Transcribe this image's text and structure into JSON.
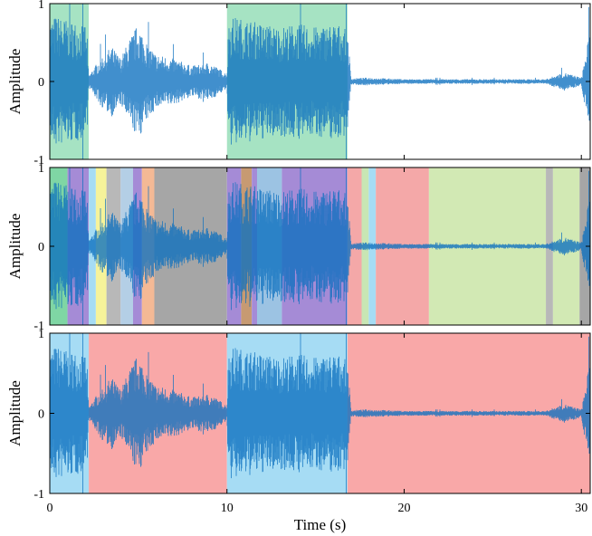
{
  "chart_data": [
    {
      "type": "area",
      "panel": "top",
      "ylabel": "Amplitude",
      "xlim": [
        0,
        30.5
      ],
      "ylim": [
        -1,
        1
      ],
      "yticks": [
        1,
        0,
        -1
      ],
      "segments": [
        {
          "start": 0.0,
          "end": 2.2,
          "color": "#a6e3c3"
        },
        {
          "start": 10.0,
          "end": 16.8,
          "color": "#a6e3c3"
        }
      ],
      "waveform_envelope": {
        "time": [
          0,
          0.3,
          1.0,
          2.0,
          2.2,
          3.0,
          3.5,
          4.0,
          4.5,
          5.0,
          5.5,
          6.0,
          7.0,
          8.0,
          9.0,
          10.0,
          10.1,
          11.0,
          12.0,
          13.0,
          14.0,
          15.0,
          16.0,
          16.8,
          17.0,
          18.0,
          20.0,
          22.0,
          24.0,
          26.0,
          28.0,
          29.0,
          30.0,
          30.5
        ],
        "amplitude": [
          0.8,
          0.85,
          0.8,
          0.75,
          0.08,
          0.35,
          0.45,
          0.3,
          0.55,
          0.75,
          0.5,
          0.35,
          0.3,
          0.2,
          0.25,
          0.1,
          0.85,
          0.8,
          0.75,
          0.7,
          0.75,
          0.7,
          0.75,
          0.7,
          0.04,
          0.05,
          0.03,
          0.03,
          0.03,
          0.03,
          0.03,
          0.12,
          0.05,
          0.7
        ]
      }
    },
    {
      "type": "area",
      "panel": "middle",
      "ylabel": "Amplitude",
      "xlim": [
        0,
        30.5
      ],
      "ylim": [
        -1,
        1
      ],
      "yticks": [
        1,
        0,
        -1
      ],
      "segments": [
        {
          "start": 0.0,
          "end": 1.0,
          "color": "#7fd6a4"
        },
        {
          "start": 1.0,
          "end": 2.2,
          "color": "#a58bd6"
        },
        {
          "start": 2.2,
          "end": 2.6,
          "color": "#a6dcf4"
        },
        {
          "start": 2.6,
          "end": 3.2,
          "color": "#f6f39a"
        },
        {
          "start": 3.2,
          "end": 4.0,
          "color": "#b8b8b8"
        },
        {
          "start": 4.0,
          "end": 4.7,
          "color": "#b4cfe6"
        },
        {
          "start": 4.7,
          "end": 5.2,
          "color": "#a58bd6"
        },
        {
          "start": 5.2,
          "end": 5.9,
          "color": "#f4b995"
        },
        {
          "start": 5.9,
          "end": 10.0,
          "color": "#a6a6a6"
        },
        {
          "start": 10.0,
          "end": 10.8,
          "color": "#a58bd6"
        },
        {
          "start": 10.8,
          "end": 11.4,
          "color": "#c79a72"
        },
        {
          "start": 11.4,
          "end": 11.7,
          "color": "#a58bd6"
        },
        {
          "start": 11.7,
          "end": 13.1,
          "color": "#9cc3e3"
        },
        {
          "start": 13.1,
          "end": 16.8,
          "color": "#a58bd6"
        },
        {
          "start": 16.8,
          "end": 17.6,
          "color": "#f4a8a8"
        },
        {
          "start": 17.6,
          "end": 18.0,
          "color": "#c8e6b4"
        },
        {
          "start": 18.0,
          "end": 18.4,
          "color": "#a6dcf4"
        },
        {
          "start": 18.4,
          "end": 21.4,
          "color": "#f4a8a8"
        },
        {
          "start": 21.4,
          "end": 28.0,
          "color": "#d2e9b4"
        },
        {
          "start": 28.0,
          "end": 28.4,
          "color": "#b8b8b8"
        },
        {
          "start": 28.4,
          "end": 29.9,
          "color": "#d2e9b4"
        },
        {
          "start": 29.9,
          "end": 30.5,
          "color": "#a6a6a6"
        }
      ],
      "waveform_envelope": {
        "time": [
          0,
          0.3,
          1.0,
          2.0,
          2.2,
          3.0,
          3.5,
          4.0,
          4.5,
          5.0,
          5.5,
          6.0,
          7.0,
          8.0,
          9.0,
          10.0,
          10.1,
          11.0,
          12.0,
          13.0,
          14.0,
          15.0,
          16.0,
          16.8,
          17.0,
          18.0,
          20.0,
          22.0,
          24.0,
          26.0,
          28.0,
          29.0,
          30.0,
          30.5
        ],
        "amplitude": [
          0.8,
          0.85,
          0.8,
          0.75,
          0.08,
          0.35,
          0.45,
          0.3,
          0.55,
          0.75,
          0.5,
          0.35,
          0.3,
          0.2,
          0.25,
          0.1,
          0.85,
          0.8,
          0.75,
          0.7,
          0.75,
          0.7,
          0.75,
          0.7,
          0.04,
          0.05,
          0.03,
          0.03,
          0.03,
          0.03,
          0.03,
          0.12,
          0.05,
          0.7
        ]
      }
    },
    {
      "type": "area",
      "panel": "bottom",
      "xlabel": "Time (s)",
      "ylabel": "Amplitude",
      "xlim": [
        0,
        30.5
      ],
      "ylim": [
        -1,
        1
      ],
      "xticks": [
        0,
        10,
        20,
        30
      ],
      "yticks": [
        1,
        0,
        -1
      ],
      "segments": [
        {
          "start": 0.0,
          "end": 2.2,
          "color": "#a6dcf4"
        },
        {
          "start": 2.2,
          "end": 10.0,
          "color": "#f9a8a8"
        },
        {
          "start": 10.0,
          "end": 16.8,
          "color": "#a6dcf4"
        },
        {
          "start": 16.8,
          "end": 30.5,
          "color": "#f9a8a8"
        }
      ],
      "waveform_envelope": {
        "time": [
          0,
          0.3,
          1.0,
          2.0,
          2.2,
          3.0,
          3.5,
          4.0,
          4.5,
          5.0,
          5.5,
          6.0,
          7.0,
          8.0,
          9.0,
          10.0,
          10.1,
          11.0,
          12.0,
          13.0,
          14.0,
          15.0,
          16.0,
          16.8,
          17.0,
          18.0,
          20.0,
          22.0,
          24.0,
          26.0,
          28.0,
          29.0,
          30.0,
          30.5
        ],
        "amplitude": [
          0.8,
          0.85,
          0.8,
          0.75,
          0.08,
          0.35,
          0.45,
          0.3,
          0.55,
          0.75,
          0.5,
          0.35,
          0.3,
          0.2,
          0.25,
          0.1,
          0.85,
          0.8,
          0.75,
          0.7,
          0.75,
          0.7,
          0.75,
          0.7,
          0.04,
          0.05,
          0.03,
          0.03,
          0.03,
          0.03,
          0.03,
          0.12,
          0.05,
          0.7
        ]
      }
    }
  ],
  "colors": {
    "waveform": "#0b6fbf",
    "axis": "#000000"
  }
}
